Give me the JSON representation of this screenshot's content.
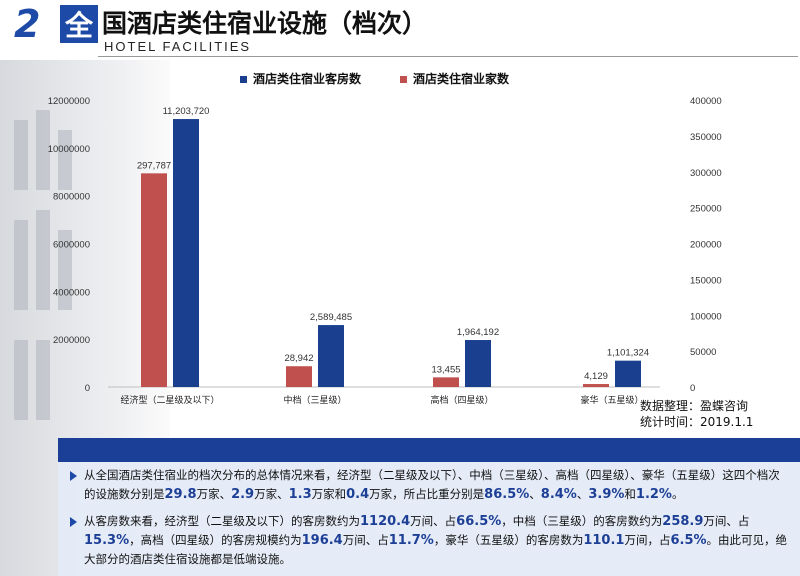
{
  "header": {
    "number": "2",
    "box_char": "全",
    "title": "国酒店类住宿业设施（档次）",
    "subtitle": "HOTEL   FACILITIES"
  },
  "source": {
    "line1": "数据整理：盈蝶咨询",
    "line2": "统计时间：2019.1.1"
  },
  "chart_data": {
    "type": "bar",
    "title": "",
    "categories": [
      "经济型（二星级及以下）",
      "中档（三星级）",
      "高档（四星级）",
      "豪华（五星级）"
    ],
    "series": [
      {
        "name": "酒店类住宿业客房数",
        "axis": "left",
        "values": [
          11203720,
          2589485,
          1964192,
          1101324
        ],
        "labels": [
          "11,203,720",
          "2,589,485",
          "1,964,192",
          "1,101,324"
        ]
      },
      {
        "name": "酒店类住宿业家数",
        "axis": "right",
        "values": [
          297787,
          28942,
          13455,
          4129
        ],
        "labels": [
          "297,787",
          "28,942",
          "13,455",
          "4,129"
        ]
      }
    ],
    "y_left": {
      "min": 0,
      "max": 12000000,
      "ticks": [
        "0",
        "2000000",
        "4000000",
        "6000000",
        "8000000",
        "10000000",
        "12000000"
      ]
    },
    "y_right": {
      "min": 0,
      "max": 400000,
      "ticks": [
        "0",
        "50000",
        "100000",
        "150000",
        "200000",
        "250000",
        "300000",
        "350000",
        "400000"
      ]
    },
    "legend_position": "top",
    "grid": false
  },
  "colors": {
    "rooms": "#1a3f8f",
    "hotels": "#c0504d",
    "brand": "#1d4aa6"
  },
  "panel": {
    "b1": {
      "pre": "从全国酒店类住宿业的档次分布的总体情况来看，经济型（二星级及以下）、中档（三星级）、高档（四星级）、豪华（五星级）这四个档次的设施数分别是",
      "v1": "29.8",
      "t1": "万家、",
      "v2": "2.9",
      "t2": "万家、",
      "v3": "1.3",
      "t3": "万家和",
      "v4": "0.4",
      "t4": "万家，所占比重分别是",
      "p1": "86.5%",
      "s1": "、",
      "p2": "8.4%",
      "s2": "、",
      "p3": "3.9%",
      "s3": "和",
      "p4": "1.2%",
      "end": "。"
    },
    "b2": {
      "pre": "从客房数来看，经济型（二星级及以下）的客房数约为",
      "v1": "1120.4",
      "t1": "万间、占",
      "p1": "66.5%",
      "t2": "，中档（三星级）的客房数约为",
      "v2": "258.9",
      "t3": "万间、占",
      "p2": "15.3%",
      "t4": "，高档（四星级）的客房规模约为",
      "v3": "196.4",
      "t5": "万间、占",
      "p3": "11.7%",
      "t6": "，豪华（五星级）的客房数为",
      "v4": "110.1",
      "t7": "万间，占",
      "p4": "6.5%",
      "end": "。由此可见，绝大部分的酒店类住宿设施都是低端设施。"
    }
  }
}
